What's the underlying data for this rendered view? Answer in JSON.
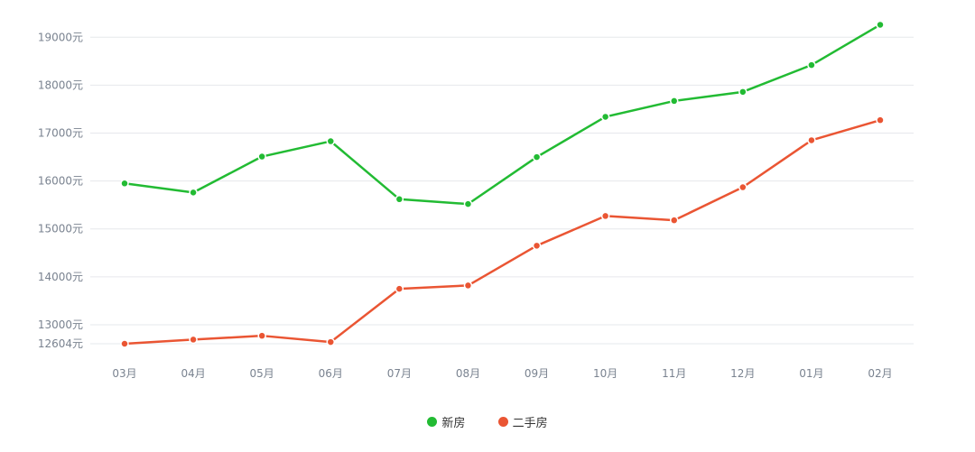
{
  "chart_data": {
    "type": "line",
    "categories": [
      "03月",
      "04月",
      "05月",
      "06月",
      "07月",
      "08月",
      "09月",
      "10月",
      "11月",
      "12月",
      "01月",
      "02月"
    ],
    "series": [
      {
        "name": "新房",
        "color": "#22bb33",
        "values": [
          15950,
          15760,
          16510,
          16830,
          15620,
          15520,
          16500,
          17340,
          17670,
          17860,
          18420,
          19260
        ]
      },
      {
        "name": "二手房",
        "color": "#ea5533",
        "values": [
          12604,
          12690,
          12770,
          12640,
          13750,
          13820,
          14650,
          15270,
          15180,
          15870,
          16850,
          17270
        ]
      }
    ],
    "y_ticks": [
      {
        "value": 12604,
        "label": "12604元"
      },
      {
        "value": 13000,
        "label": "13000元"
      },
      {
        "value": 14000,
        "label": "14000元"
      },
      {
        "value": 15000,
        "label": "15000元"
      },
      {
        "value": 16000,
        "label": "16000元"
      },
      {
        "value": 17000,
        "label": "17000元"
      },
      {
        "value": 18000,
        "label": "18000元"
      },
      {
        "value": 19000,
        "label": "19000元"
      }
    ],
    "ylim": [
      12604,
      19250
    ],
    "grid": true,
    "legend": "bottom-center"
  }
}
